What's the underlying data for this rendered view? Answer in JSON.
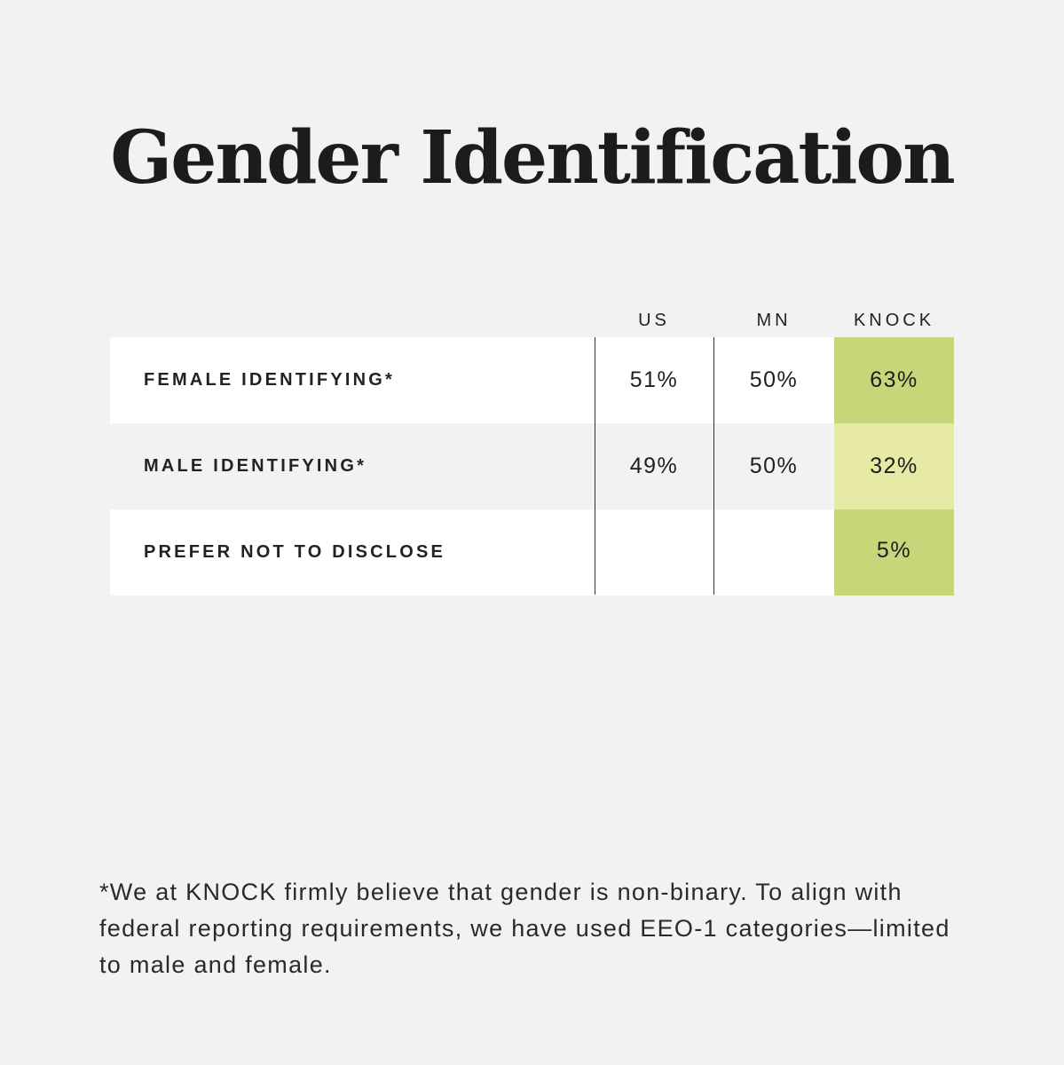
{
  "title": "Gender Identification",
  "chart_data": {
    "type": "table",
    "columns": [
      "US",
      "MN",
      "KNOCK"
    ],
    "rows": [
      {
        "label": "FEMALE IDENTIFYING*",
        "values": [
          "51%",
          "50%",
          "63%"
        ]
      },
      {
        "label": "MALE IDENTIFYING*",
        "values": [
          "49%",
          "50%",
          "32%"
        ]
      },
      {
        "label": "PREFER NOT TO DISCLOSE",
        "values": [
          "",
          "",
          "5%"
        ]
      }
    ],
    "highlight_colors": {
      "dark": "#c8d67a",
      "light": "#e6eaa5"
    }
  },
  "footnote": "*We at KNOCK firmly believe that gender is non-binary. To align with federal reporting requirements, we have used EEO-1 categories—limited to male and female."
}
